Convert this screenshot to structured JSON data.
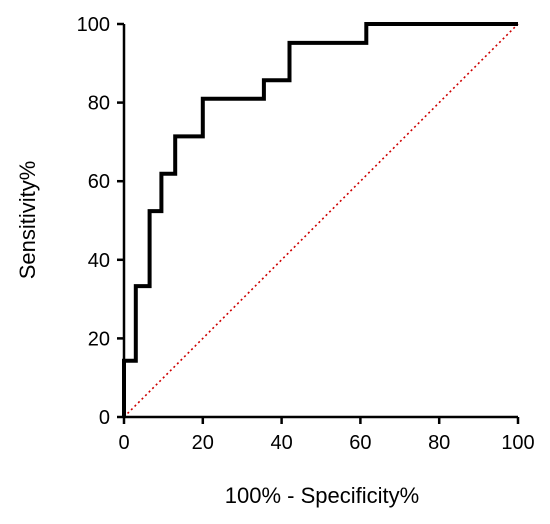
{
  "chart_data": {
    "type": "line",
    "title": "",
    "xlabel": "100% - Specificity%",
    "ylabel": "Sensitivity%",
    "xlim": [
      0,
      100
    ],
    "ylim": [
      0,
      100
    ],
    "xticks": [
      "0",
      "20",
      "40",
      "60",
      "80",
      "100"
    ],
    "yticks": [
      "0",
      "20",
      "40",
      "60",
      "80",
      "100"
    ],
    "grid": false,
    "series": [
      {
        "style": "solid-step",
        "color": "#000000",
        "x": [
          0,
          0,
          3,
          3,
          6.5,
          6.5,
          9.5,
          9.5,
          13,
          13,
          20,
          20,
          35.5,
          35.5,
          42,
          42,
          61.5,
          61.5,
          100
        ],
        "y": [
          0,
          14.3,
          14.3,
          33.3,
          33.3,
          52.4,
          52.4,
          61.9,
          61.9,
          71.4,
          71.4,
          81,
          81,
          85.7,
          85.7,
          95.2,
          95.2,
          100,
          100
        ]
      },
      {
        "style": "dotted-reference",
        "color": "#cc0000",
        "x": [
          0,
          100
        ],
        "y": [
          0,
          100
        ]
      }
    ]
  }
}
